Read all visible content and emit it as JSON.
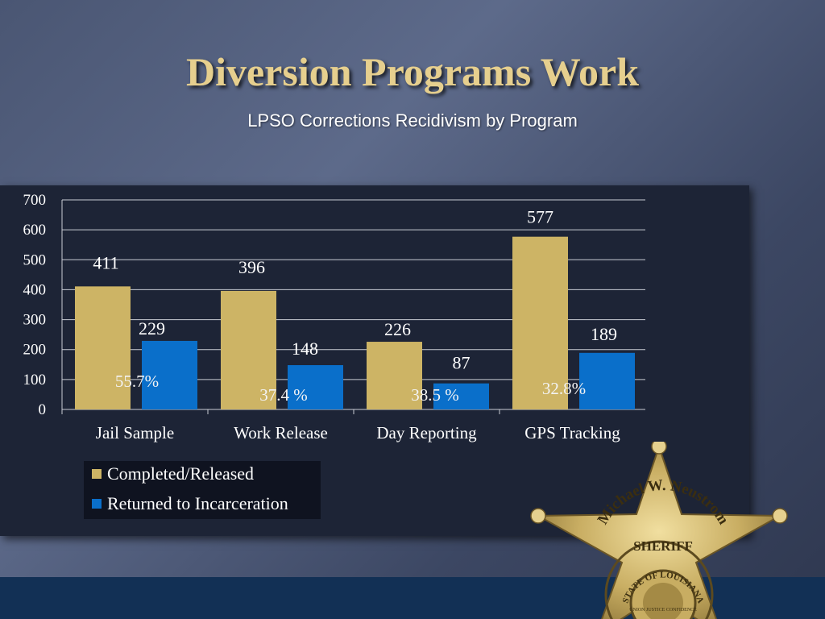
{
  "slide": {
    "title": "Diversion Programs Work",
    "subtitle": "LPSO Corrections Recidivism by Program"
  },
  "colors": {
    "completed": "#cdb465",
    "returned": "#0a6fca",
    "title": "#e6cf8e",
    "panel": "#1d2436"
  },
  "chart_data": {
    "type": "bar",
    "title": "",
    "xlabel": "",
    "ylabel": "",
    "ylim": [
      0,
      700
    ],
    "yticks": [
      0,
      100,
      200,
      300,
      400,
      500,
      600,
      700
    ],
    "grid": true,
    "legend_position": "bottom-left",
    "categories": [
      "Jail Sample",
      "Work Release",
      "Day Reporting",
      "GPS Tracking"
    ],
    "series": [
      {
        "name": "Completed/Released",
        "values": [
          411,
          396,
          226,
          577
        ],
        "labels": [
          "411",
          "396",
          "226",
          "577"
        ]
      },
      {
        "name": "Returned to Incarceration",
        "values": [
          229,
          148,
          87,
          189
        ],
        "labels": [
          "229",
          "148",
          "87",
          "189"
        ]
      }
    ],
    "annotations": [
      "55.7%",
      "37.4 %",
      "38.5 %",
      "32.8%"
    ]
  },
  "badge": {
    "name_text": "Michael W. Neustrom",
    "rank_text": "SHERIFF",
    "seal_text": "STATE OF LOUISIANA",
    "motto_text": "UNION JUSTICE CONFIDENCE"
  }
}
